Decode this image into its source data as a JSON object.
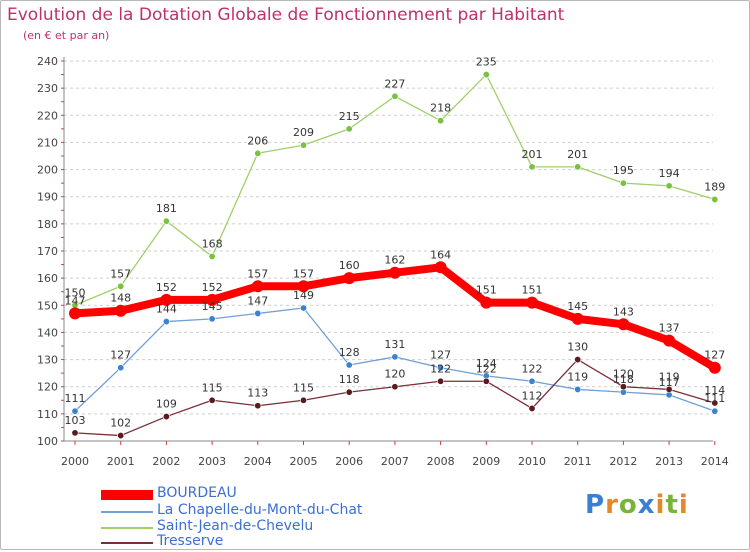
{
  "header": {
    "title": "Evolution de la Dotation Globale de Fonctionnement par Habitant",
    "subtitle": "(en € et par an)"
  },
  "logo": {
    "text": "Proxiti",
    "letters": [
      "P",
      "r",
      "o",
      "x",
      "i",
      "t",
      "i"
    ],
    "colors": [
      "#3b7fd4",
      "#e8862a",
      "#7ab33a",
      "#3b7fd4",
      "#e8862a",
      "#7ab33a",
      "#e8862a"
    ]
  },
  "chart_data": {
    "type": "line",
    "title": "Evolution de la Dotation Globale de Fonctionnement par Habitant",
    "subtitle": "(en € et par an)",
    "xlabel": "",
    "ylabel": "",
    "x": [
      "2000",
      "2001",
      "2002",
      "2003",
      "2004",
      "2005",
      "2006",
      "2007",
      "2008",
      "2009",
      "2010",
      "2011",
      "2012",
      "2013",
      "2014"
    ],
    "ylim": [
      100,
      240
    ],
    "yticks": [
      "100",
      "110",
      "120",
      "130",
      "140",
      "150",
      "160",
      "170",
      "180",
      "190",
      "200",
      "210",
      "220",
      "230",
      "240"
    ],
    "grid": "horizontal-dashed",
    "legend_position": "bottom-left",
    "series": [
      {
        "name": "BOURDEAU",
        "color": "#ff0000",
        "marker_color": "#ff0000",
        "style": "thick",
        "values": [
          147,
          148,
          152,
          152,
          157,
          157,
          160,
          162,
          164,
          151,
          151,
          145,
          143,
          137,
          127
        ],
        "labels": [
          "147",
          "148",
          "152",
          "152",
          "157",
          "157",
          "160",
          "162",
          "164",
          "151",
          "151",
          "145",
          "143",
          "137",
          "127"
        ]
      },
      {
        "name": "La Chapelle-du-Mont-du-Chat",
        "color": "#6fa0d8",
        "marker_color": "#3b82d1",
        "style": "thin",
        "values": [
          111,
          127,
          144,
          145,
          147,
          149,
          128,
          131,
          127,
          124,
          122,
          119,
          118,
          117,
          111
        ],
        "labels": [
          "111",
          "127",
          "144",
          "145",
          "147",
          "149",
          "128",
          "131",
          "127",
          "124",
          "122",
          "119",
          "118",
          "117",
          "111"
        ]
      },
      {
        "name": "Saint-Jean-de-Chevelu",
        "color": "#9fd06a",
        "marker_color": "#7ac142",
        "style": "thin",
        "values": [
          150,
          157,
          181,
          168,
          206,
          209,
          215,
          227,
          218,
          235,
          201,
          201,
          195,
          194,
          189
        ],
        "labels": [
          "150",
          "157",
          "181",
          "168",
          "206",
          "209",
          "215",
          "227",
          "218",
          "235",
          "201",
          "201",
          "195",
          "194",
          "189"
        ]
      },
      {
        "name": "Tresserve",
        "color": "#7a2e36",
        "marker_color": "#5a1a20",
        "style": "thin",
        "values": [
          103,
          102,
          109,
          115,
          113,
          115,
          118,
          120,
          122,
          122,
          112,
          130,
          120,
          119,
          114
        ],
        "labels": [
          "103",
          "102",
          "109",
          "115",
          "113",
          "115",
          "118",
          "120",
          "122",
          "122",
          "112",
          "130",
          "120",
          "119",
          "114"
        ]
      }
    ]
  }
}
